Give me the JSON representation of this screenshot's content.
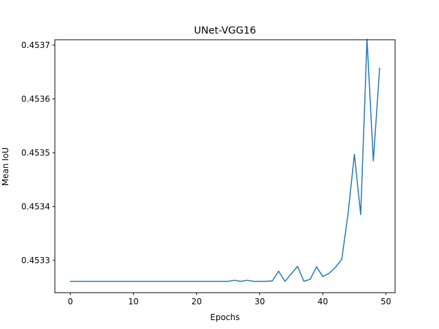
{
  "chart_data": {
    "type": "line",
    "title": "UNet-VGG16",
    "xlabel": "Epochs",
    "ylabel": "Mean IoU",
    "xlim": [
      -2.45,
      51.45
    ],
    "ylim": [
      0.45324,
      0.45371
    ],
    "xticks": [
      0,
      10,
      20,
      30,
      40,
      50
    ],
    "xtick_labels": [
      "0",
      "10",
      "20",
      "30",
      "40",
      "50"
    ],
    "yticks": [
      0.4533,
      0.4534,
      0.4535,
      0.4536,
      0.4537
    ],
    "ytick_labels": [
      "0.4533",
      "0.4534",
      "0.4535",
      "0.4536",
      "0.4537"
    ],
    "grid": false,
    "series": [
      {
        "color": "#1f77b4",
        "x": [
          0,
          1,
          2,
          3,
          4,
          5,
          6,
          7,
          8,
          9,
          10,
          11,
          12,
          13,
          14,
          15,
          16,
          17,
          18,
          19,
          20,
          21,
          22,
          23,
          24,
          25,
          26,
          27,
          28,
          29,
          30,
          31,
          32,
          33,
          34,
          35,
          36,
          37,
          38,
          39,
          40,
          41,
          42,
          43,
          44,
          45,
          46,
          47,
          48,
          49
        ],
        "values": [
          0.453261,
          0.453261,
          0.453261,
          0.453261,
          0.453261,
          0.453261,
          0.453261,
          0.453261,
          0.453261,
          0.453261,
          0.453261,
          0.453261,
          0.453261,
          0.453261,
          0.453261,
          0.453261,
          0.453261,
          0.453261,
          0.453261,
          0.453261,
          0.453261,
          0.453261,
          0.453261,
          0.453261,
          0.453261,
          0.453261,
          0.453263,
          0.453261,
          0.453263,
          0.453261,
          0.453261,
          0.453261,
          0.453262,
          0.45328,
          0.453261,
          0.453275,
          0.453289,
          0.453261,
          0.453265,
          0.453288,
          0.45327,
          0.453276,
          0.453287,
          0.453302,
          0.453387,
          0.453497,
          0.453385,
          0.453711,
          0.453485,
          0.453657
        ]
      }
    ]
  }
}
